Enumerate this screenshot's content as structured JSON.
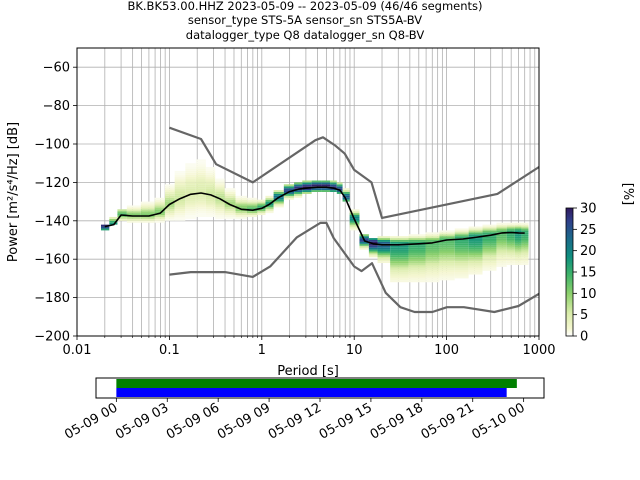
{
  "title": {
    "line1": "BK.BK53.00.HHZ   2023-05-09 -- 2023-05-09  (46/46 segments)",
    "line2": "sensor_type STS-5A sensor_sn STS5A-BV",
    "line3": "datalogger_type Q8 datalogger_sn Q8-BV"
  },
  "axes": {
    "xlabel": "Period [s]",
    "ylabel": "Power [m²/s⁴/Hz] [dB]",
    "xscale": "log",
    "xlim": [
      0.01,
      1000
    ],
    "ylim": [
      -200,
      -50
    ],
    "xticks": [
      {
        "value": 0.01,
        "label": "0.01"
      },
      {
        "value": 0.1,
        "label": "0.1"
      },
      {
        "value": 1,
        "label": "1"
      },
      {
        "value": 10,
        "label": "10"
      },
      {
        "value": 100,
        "label": "100"
      },
      {
        "value": 1000,
        "label": "1000"
      }
    ],
    "yticks": [
      {
        "value": -60,
        "label": "−60"
      },
      {
        "value": -80,
        "label": "−80"
      },
      {
        "value": -100,
        "label": "−100"
      },
      {
        "value": -120,
        "label": "−120"
      },
      {
        "value": -140,
        "label": "−140"
      },
      {
        "value": -160,
        "label": "−160"
      },
      {
        "value": -180,
        "label": "−180"
      },
      {
        "value": -200,
        "label": "−200"
      }
    ],
    "grid": true
  },
  "colorbar": {
    "label": "[%]",
    "range": [
      0,
      30
    ],
    "ticks": [
      {
        "value": 0,
        "label": "0"
      },
      {
        "value": 5,
        "label": "5"
      },
      {
        "value": 10,
        "label": "10"
      },
      {
        "value": 15,
        "label": "15"
      },
      {
        "value": 20,
        "label": "20"
      },
      {
        "value": 25,
        "label": "25"
      },
      {
        "value": 30,
        "label": "30"
      }
    ],
    "colors": [
      "#ffffff",
      "#f4f6cf",
      "#d9ecaa",
      "#8ed16d",
      "#3fb36a",
      "#0f8f7f",
      "#1b6a8a",
      "#2f3f8a",
      "#301a5e"
    ]
  },
  "timeline": {
    "tick_labels": [
      "05-09 00",
      "05-09 03",
      "05-09 06",
      "05-09 09",
      "05-09 12",
      "05-09 15",
      "05-09 18",
      "05-09 21",
      "05-10 00"
    ],
    "range_hours": [
      -1.2,
      25.2
    ],
    "bars": [
      {
        "name": "data",
        "start_hour": 0,
        "end_hour": 23.6,
        "color": "#008000"
      },
      {
        "name": "psd",
        "start_hour": 0,
        "end_hour": 23.0,
        "color": "#0000ff"
      }
    ]
  },
  "chart_data": {
    "type": "heatmap",
    "title": "BK.BK53.00.HHZ   2023-05-09 -- 2023-05-09  (46/46 segments)",
    "xlabel": "Period [s]",
    "ylabel": "Power [m²/s⁴/Hz] [dB]",
    "xscale": "log",
    "xlim": [
      0.01,
      1000
    ],
    "ylim": [
      -200,
      -50
    ],
    "nhnm": {
      "name": "NHNM",
      "color": "#666666",
      "x": [
        0.1,
        0.22,
        0.32,
        0.8,
        3.8,
        4.6,
        6.3,
        7.9,
        10,
        15.4,
        20,
        354.8,
        1000
      ],
      "y": [
        -91.5,
        -97.4,
        -110.5,
        -120,
        -98,
        -96.5,
        -101,
        -105,
        -113.5,
        -120,
        -138.5,
        -126,
        -112
      ]
    },
    "nlnm": {
      "name": "NLNM",
      "color": "#666666",
      "x": [
        0.1,
        0.17,
        0.4,
        0.8,
        1.24,
        2.4,
        4.3,
        5,
        6,
        10,
        12,
        15.6,
        21.9,
        31.6,
        45,
        70,
        101,
        154,
        328,
        600,
        1000
      ],
      "y": [
        -168,
        -166.7,
        -166.7,
        -169.2,
        -163.7,
        -148.6,
        -141.1,
        -141.1,
        -149,
        -163.8,
        -166.2,
        -162.1,
        -177.5,
        -185,
        -187.5,
        -187.5,
        -185,
        -185,
        -187.5,
        -184.4,
        -178
      ]
    },
    "mode": {
      "name": "mode",
      "color": "#000000",
      "x": [
        0.02,
        0.025,
        0.03,
        0.04,
        0.06,
        0.08,
        0.1,
        0.13,
        0.17,
        0.22,
        0.28,
        0.35,
        0.45,
        0.6,
        0.8,
        1.0,
        1.2,
        1.5,
        2.0,
        2.5,
        3.0,
        4.0,
        5.0,
        6.0,
        7.0,
        8.0,
        10,
        13,
        16,
        20,
        30,
        50,
        70,
        100,
        150,
        200,
        300,
        400,
        500,
        600,
        700
      ],
      "y": [
        -143,
        -142,
        -137,
        -137.5,
        -137.5,
        -136,
        -131.5,
        -128.5,
        -126.2,
        -125.5,
        -126.5,
        -128.5,
        -131.5,
        -134,
        -134.5,
        -133.5,
        -131.5,
        -128,
        -124.8,
        -123.5,
        -123,
        -122.5,
        -122.5,
        -123,
        -124,
        -128,
        -139,
        -150.5,
        -152,
        -152.5,
        -152.5,
        -152,
        -151.5,
        -150,
        -149.5,
        -148.7,
        -147.5,
        -146.3,
        -146.1,
        -146.3,
        -146.4
      ]
    },
    "histogram": {
      "description_units": "percent of PSD segments per cell",
      "period_bins": [
        0.02,
        0.025,
        0.03,
        0.04,
        0.06,
        0.08,
        0.1,
        0.13,
        0.17,
        0.22,
        0.28,
        0.35,
        0.45,
        0.6,
        0.8,
        1.0,
        1.2,
        1.5,
        2.0,
        2.5,
        3.0,
        4.0,
        5.0,
        6.0,
        7.0,
        8.0,
        10,
        13,
        16,
        20,
        30,
        50,
        70,
        100,
        150,
        200,
        300,
        400,
        500,
        600,
        700
      ],
      "power_min": [
        -145,
        -142,
        -140,
        -141,
        -141,
        -141,
        -140,
        -140,
        -139,
        -138,
        -138,
        -139,
        -139,
        -139,
        -138,
        -137,
        -136,
        -133,
        -129,
        -128,
        -126,
        -125,
        -125,
        -125,
        -126,
        -130,
        -145,
        -155,
        -159,
        -162,
        -172,
        -172,
        -172,
        -171,
        -170,
        -168,
        -166,
        -164,
        -163,
        -163,
        -163
      ],
      "power_max": [
        -143,
        -139,
        -135,
        -133,
        -131,
        -129,
        -122,
        -115,
        -111,
        -109,
        -113,
        -119,
        -124,
        -128,
        -129,
        -130,
        -128,
        -125,
        -122,
        -121,
        -120,
        -120,
        -120,
        -120,
        -121,
        -124,
        -135,
        -148,
        -150,
        -149,
        -149,
        -148,
        -147,
        -146,
        -145,
        -144,
        -143,
        -142,
        -142,
        -142,
        -142
      ],
      "peak_percent": [
        28,
        18,
        14,
        12,
        12,
        12,
        10,
        8,
        7,
        7,
        8,
        9,
        10,
        12,
        14,
        16,
        18,
        22,
        26,
        28,
        30,
        30,
        30,
        28,
        26,
        24,
        20,
        26,
        30,
        24,
        18,
        16,
        14,
        14,
        16,
        18,
        16,
        14,
        16,
        18,
        16
      ]
    }
  }
}
